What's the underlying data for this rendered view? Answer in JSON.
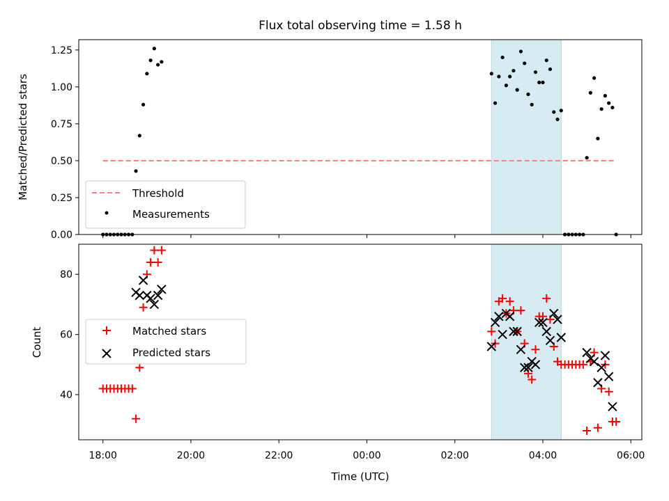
{
  "title": "Flux total observing time = 1.58 h",
  "xlabel": "Time (UTC)",
  "colors": {
    "threshold": "#ff7f7f",
    "measurements": "#000000",
    "matched": "#ff0000",
    "predicted": "#000000",
    "highlight": "#add8e6"
  },
  "chart_data": [
    {
      "type": "scatter",
      "ylabel": "Matched/Predicted stars",
      "ylim": [
        0.0,
        1.32
      ],
      "yticks": [
        "0.00",
        "0.25",
        "0.50",
        "0.75",
        "1.00",
        "1.25"
      ],
      "ytick_values": [
        0.0,
        0.25,
        0.5,
        0.75,
        1.0,
        1.25
      ],
      "legend": {
        "placement": "lower-left",
        "entries": [
          "Threshold",
          "Measurements"
        ]
      },
      "threshold": {
        "name": "Threshold",
        "value": 0.5,
        "x_range": [
          "18:00",
          "05:40"
        ],
        "style": "dashed"
      },
      "highlight_span": [
        "02:50",
        "04:25"
      ],
      "series": [
        {
          "name": "Measurements",
          "points": [
            [
              "18:00",
              0
            ],
            [
              "18:05",
              0
            ],
            [
              "18:10",
              0
            ],
            [
              "18:15",
              0
            ],
            [
              "18:20",
              0
            ],
            [
              "18:25",
              0
            ],
            [
              "18:30",
              0
            ],
            [
              "18:35",
              0
            ],
            [
              "18:40",
              0
            ],
            [
              "18:45",
              0.43
            ],
            [
              "18:50",
              0.67
            ],
            [
              "18:55",
              0.88
            ],
            [
              "19:00",
              1.09
            ],
            [
              "19:05",
              1.18
            ],
            [
              "19:10",
              1.26
            ],
            [
              "19:15",
              1.15
            ],
            [
              "19:20",
              1.17
            ],
            [
              "02:50",
              1.09
            ],
            [
              "02:55",
              0.89
            ],
            [
              "03:00",
              1.07
            ],
            [
              "03:05",
              1.2
            ],
            [
              "03:10",
              1.01
            ],
            [
              "03:15",
              1.07
            ],
            [
              "03:20",
              1.11
            ],
            [
              "03:25",
              0.98
            ],
            [
              "03:30",
              1.24
            ],
            [
              "03:35",
              1.16
            ],
            [
              "03:40",
              0.95
            ],
            [
              "03:45",
              0.88
            ],
            [
              "03:50",
              1.1
            ],
            [
              "03:55",
              1.03
            ],
            [
              "04:00",
              1.03
            ],
            [
              "04:05",
              1.18
            ],
            [
              "04:10",
              1.12
            ],
            [
              "04:15",
              0.83
            ],
            [
              "04:20",
              0.78
            ],
            [
              "04:25",
              0.84
            ],
            [
              "04:30",
              0
            ],
            [
              "04:35",
              0
            ],
            [
              "04:40",
              0
            ],
            [
              "04:45",
              0
            ],
            [
              "04:50",
              0
            ],
            [
              "04:55",
              0
            ],
            [
              "05:00",
              0.52
            ],
            [
              "05:05",
              0.96
            ],
            [
              "05:10",
              1.06
            ],
            [
              "05:15",
              0.65
            ],
            [
              "05:20",
              0.85
            ],
            [
              "05:25",
              0.94
            ],
            [
              "05:30",
              0.89
            ],
            [
              "05:35",
              0.86
            ],
            [
              "05:40",
              0
            ]
          ]
        }
      ]
    },
    {
      "type": "scatter",
      "ylabel": "Count",
      "ylim": [
        25,
        90
      ],
      "yticks": [
        "40",
        "60",
        "80"
      ],
      "ytick_values": [
        40,
        60,
        80
      ],
      "xticks": [
        "18:00",
        "20:00",
        "22:00",
        "00:00",
        "02:00",
        "04:00",
        "06:00"
      ],
      "legend": {
        "placement": "center-left",
        "entries": [
          "Matched stars",
          "Predicted stars"
        ]
      },
      "highlight_span": [
        "02:50",
        "04:25"
      ],
      "series": [
        {
          "name": "Matched stars",
          "marker": "+",
          "points": [
            [
              "18:00",
              42
            ],
            [
              "18:05",
              42
            ],
            [
              "18:10",
              42
            ],
            [
              "18:15",
              42
            ],
            [
              "18:20",
              42
            ],
            [
              "18:25",
              42
            ],
            [
              "18:30",
              42
            ],
            [
              "18:35",
              42
            ],
            [
              "18:40",
              42
            ],
            [
              "18:45",
              32
            ],
            [
              "18:50",
              49
            ],
            [
              "18:55",
              69
            ],
            [
              "19:00",
              80
            ],
            [
              "19:05",
              84
            ],
            [
              "19:10",
              88
            ],
            [
              "19:15",
              84
            ],
            [
              "19:20",
              88
            ],
            [
              "02:50",
              61
            ],
            [
              "02:55",
              57
            ],
            [
              "03:00",
              71
            ],
            [
              "03:05",
              72
            ],
            [
              "03:10",
              67
            ],
            [
              "03:15",
              71
            ],
            [
              "03:20",
              68
            ],
            [
              "03:25",
              61
            ],
            [
              "03:30",
              68
            ],
            [
              "03:35",
              57
            ],
            [
              "03:40",
              47
            ],
            [
              "03:45",
              45
            ],
            [
              "03:50",
              55
            ],
            [
              "03:55",
              66
            ],
            [
              "04:00",
              66
            ],
            [
              "04:05",
              72
            ],
            [
              "04:10",
              65
            ],
            [
              "04:15",
              56
            ],
            [
              "04:20",
              51
            ],
            [
              "04:25",
              50
            ],
            [
              "04:30",
              50
            ],
            [
              "04:35",
              50
            ],
            [
              "04:40",
              50
            ],
            [
              "04:45",
              50
            ],
            [
              "04:50",
              50
            ],
            [
              "04:55",
              50
            ],
            [
              "05:00",
              28
            ],
            [
              "05:05",
              51
            ],
            [
              "05:10",
              54
            ],
            [
              "05:15",
              29
            ],
            [
              "05:20",
              42
            ],
            [
              "05:25",
              50
            ],
            [
              "05:30",
              41
            ],
            [
              "05:35",
              31
            ],
            [
              "05:40",
              31
            ]
          ]
        },
        {
          "name": "Predicted stars",
          "marker": "x",
          "points": [
            [
              "18:45",
              74
            ],
            [
              "18:50",
              73
            ],
            [
              "18:55",
              78
            ],
            [
              "19:00",
              73
            ],
            [
              "19:05",
              72
            ],
            [
              "19:10",
              70
            ],
            [
              "19:15",
              73
            ],
            [
              "19:20",
              75
            ],
            [
              "02:50",
              56
            ],
            [
              "02:55",
              64
            ],
            [
              "03:00",
              66
            ],
            [
              "03:05",
              60
            ],
            [
              "03:10",
              67
            ],
            [
              "03:15",
              66
            ],
            [
              "03:20",
              61
            ],
            [
              "03:25",
              61
            ],
            [
              "03:30",
              55
            ],
            [
              "03:35",
              49
            ],
            [
              "03:40",
              49
            ],
            [
              "03:45",
              51
            ],
            [
              "03:50",
              50
            ],
            [
              "03:55",
              64
            ],
            [
              "04:00",
              64
            ],
            [
              "04:05",
              61
            ],
            [
              "04:10",
              58
            ],
            [
              "04:15",
              67
            ],
            [
              "04:20",
              65
            ],
            [
              "04:25",
              59
            ],
            [
              "05:00",
              54
            ],
            [
              "05:05",
              52
            ],
            [
              "05:10",
              51
            ],
            [
              "05:15",
              44
            ],
            [
              "05:20",
              49
            ],
            [
              "05:25",
              53
            ],
            [
              "05:30",
              46
            ],
            [
              "05:35",
              36
            ]
          ]
        }
      ]
    }
  ]
}
